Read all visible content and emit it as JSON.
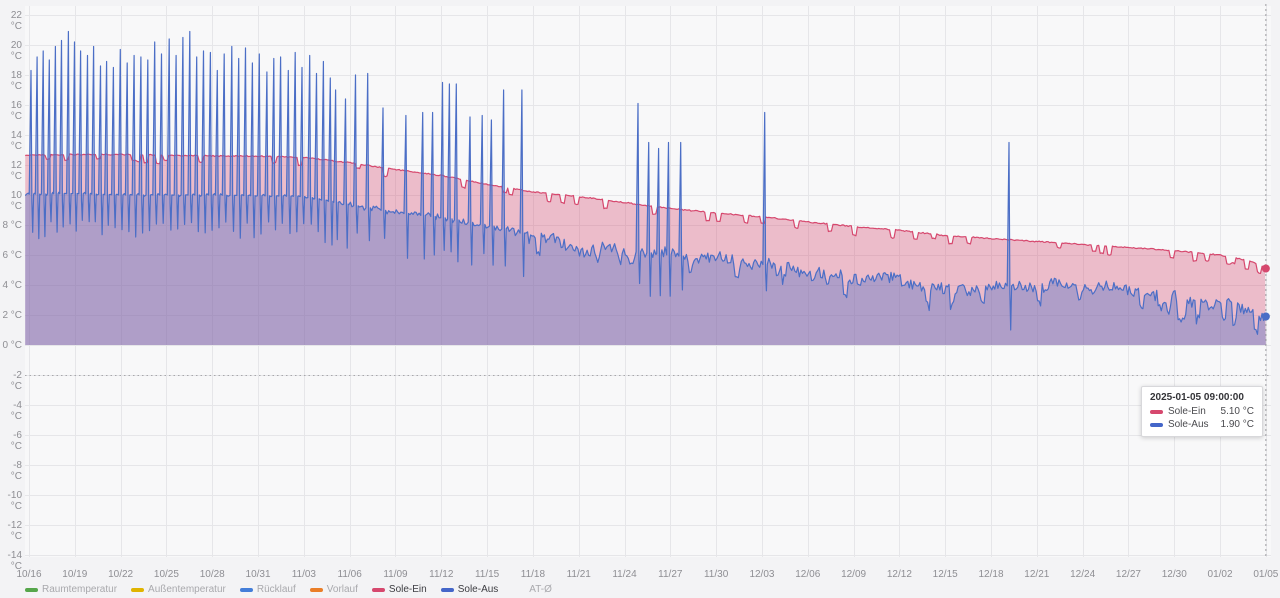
{
  "tooltip": {
    "title": "2025-01-05 09:00:00",
    "rows": [
      {
        "label": "Sole-Ein",
        "value": "5.10 °C",
        "color": "#d6486e"
      },
      {
        "label": "Sole-Aus",
        "value": "1.90 °C",
        "color": "#4466c9"
      }
    ]
  },
  "legend": {
    "items": [
      {
        "label": "Raumtemperatur",
        "color": "#56a64b",
        "active": false
      },
      {
        "label": "Außentemperatur",
        "color": "#e0b400",
        "active": false
      },
      {
        "label": "Rücklauf",
        "color": "#447ed9",
        "active": false
      },
      {
        "label": "Vorlauf",
        "color": "#ea7e28",
        "active": false
      },
      {
        "label": "Sole-Ein",
        "color": "#d6486e",
        "active": true
      },
      {
        "label": "Sole-Aus",
        "color": "#4466c9",
        "active": true
      },
      {
        "label": "AT-Ø",
        "color": null,
        "active": false
      }
    ]
  },
  "chart_data": {
    "type": "line",
    "title": "",
    "x_axis": {
      "tick_labels": [
        "10/16",
        "10/19",
        "10/22",
        "10/25",
        "10/28",
        "10/31",
        "11/03",
        "11/06",
        "11/09",
        "11/12",
        "11/15",
        "11/18",
        "11/21",
        "11/24",
        "11/27",
        "11/30",
        "12/03",
        "12/06",
        "12/09",
        "12/12",
        "12/15",
        "12/18",
        "12/21",
        "12/24",
        "12/27",
        "12/30",
        "01/02",
        "01/05"
      ],
      "days_per_tick": 3,
      "start_date": "10/16",
      "end_date": "01/05"
    },
    "y_axis": {
      "tick_labels": [
        "22 °C",
        "20 °C",
        "18 °C",
        "16 °C",
        "14 °C",
        "12 °C",
        "10 °C",
        "8 °C",
        "6 °C",
        "4 °C",
        "2 °C",
        "0 °C",
        "-2 °C",
        "-4 °C",
        "-6 °C",
        "-8 °C",
        "-10 °C",
        "-12 °C",
        "-14 °C"
      ],
      "max": 22,
      "min": -14,
      "step": 2,
      "unit": "°C",
      "grid": true
    },
    "threshold": {
      "value": -2,
      "style": "dotted",
      "color": "#a8a8ac"
    },
    "crosshair": {
      "day": 81,
      "time_label": "2025-01-05 09:00:00"
    },
    "fill_to_value": 0,
    "series": [
      {
        "name": "Sole-Ein",
        "color": "#d6486e",
        "fill_opacity": 0.34,
        "end_value": 5.1,
        "end_label": "5.10 °C",
        "points": [
          [
            0,
            12.65
          ],
          [
            3,
            12.7
          ],
          [
            6,
            12.7
          ],
          [
            9,
            12.65
          ],
          [
            12,
            12.6
          ],
          [
            15,
            12.6
          ],
          [
            18,
            12.5
          ],
          [
            21,
            12.15
          ],
          [
            24,
            11.7
          ],
          [
            27,
            11.3
          ],
          [
            30,
            10.7
          ],
          [
            33,
            10.2
          ],
          [
            36,
            9.9
          ],
          [
            39,
            9.5
          ],
          [
            42,
            9.1
          ],
          [
            45,
            8.8
          ],
          [
            48,
            8.55
          ],
          [
            51,
            8.2
          ],
          [
            54,
            7.9
          ],
          [
            57,
            7.65
          ],
          [
            60,
            7.3
          ],
          [
            63,
            7.1
          ],
          [
            66,
            6.9
          ],
          [
            69,
            6.7
          ],
          [
            72,
            6.5
          ],
          [
            75,
            6.3
          ],
          [
            78,
            6.0
          ],
          [
            80,
            5.6
          ],
          [
            81,
            5.1
          ]
        ]
      },
      {
        "name": "Sole-Aus",
        "color": "#4b6ec6",
        "fill_opacity": 0.38,
        "end_value": 1.9,
        "end_label": "1.90 °C",
        "points": [
          [
            0,
            10.05
          ],
          [
            3,
            10.1
          ],
          [
            6,
            10.0
          ],
          [
            9,
            10.0
          ],
          [
            12,
            10.0
          ],
          [
            15,
            9.95
          ],
          [
            18,
            9.9
          ],
          [
            21,
            9.35
          ],
          [
            24,
            8.85
          ],
          [
            27,
            8.5
          ],
          [
            30,
            8.0
          ],
          [
            33,
            7.3
          ],
          [
            36,
            6.4
          ],
          [
            39,
            6.3
          ],
          [
            42,
            6.0
          ],
          [
            45,
            5.7
          ],
          [
            48,
            5.4
          ],
          [
            51,
            4.9
          ],
          [
            54,
            4.5
          ],
          [
            57,
            4.3
          ],
          [
            60,
            3.6
          ],
          [
            63,
            3.9
          ],
          [
            66,
            4.0
          ],
          [
            69,
            3.9
          ],
          [
            72,
            3.7
          ],
          [
            75,
            3.1
          ],
          [
            78,
            2.7
          ],
          [
            80,
            2.4
          ],
          [
            81,
            1.9
          ]
        ],
        "spikes": [
          [
            0.15,
            18.3
          ],
          [
            0.55,
            19.2
          ],
          [
            0.95,
            19.6
          ],
          [
            1.35,
            19.0
          ],
          [
            1.75,
            19.9
          ],
          [
            2.15,
            20.3
          ],
          [
            2.6,
            20.9
          ],
          [
            3.0,
            20.2
          ],
          [
            3.4,
            19.6
          ],
          [
            3.85,
            19.3
          ],
          [
            4.25,
            19.9
          ],
          [
            4.7,
            18.6
          ],
          [
            5.1,
            18.9
          ],
          [
            5.55,
            18.5
          ],
          [
            6.0,
            19.7
          ],
          [
            6.45,
            18.8
          ],
          [
            6.9,
            19.3
          ],
          [
            7.35,
            19.2
          ],
          [
            7.8,
            19.0
          ],
          [
            8.25,
            20.2
          ],
          [
            8.7,
            19.4
          ],
          [
            9.2,
            20.4
          ],
          [
            9.65,
            19.3
          ],
          [
            10.1,
            20.5
          ],
          [
            10.55,
            20.9
          ],
          [
            11.0,
            19.2
          ],
          [
            11.45,
            19.6
          ],
          [
            11.9,
            19.5
          ],
          [
            12.35,
            18.3
          ],
          [
            12.8,
            19.4
          ],
          [
            13.3,
            19.9
          ],
          [
            13.75,
            19.1
          ],
          [
            14.2,
            19.8
          ],
          [
            14.65,
            18.8
          ],
          [
            15.1,
            19.4
          ],
          [
            15.6,
            18.2
          ],
          [
            16.05,
            19.1
          ],
          [
            16.5,
            19.2
          ],
          [
            17.0,
            18.3
          ],
          [
            17.45,
            19.5
          ],
          [
            17.9,
            18.5
          ],
          [
            18.4,
            19.3
          ],
          [
            18.85,
            18.1
          ],
          [
            19.3,
            18.9
          ],
          [
            19.75,
            17.8
          ],
          [
            20.1,
            17.0
          ],
          [
            20.75,
            16.4
          ],
          [
            21.4,
            18.0
          ],
          [
            22.2,
            18.1
          ],
          [
            23.2,
            15.8
          ],
          [
            24.7,
            15.3
          ],
          [
            25.8,
            15.5
          ],
          [
            26.45,
            15.5
          ],
          [
            27.1,
            17.5
          ],
          [
            27.55,
            17.4
          ],
          [
            28.0,
            17.4
          ],
          [
            28.9,
            15.2
          ],
          [
            29.7,
            15.3
          ],
          [
            30.3,
            15.0
          ],
          [
            31.1,
            17.0
          ],
          [
            32.3,
            17.0
          ],
          [
            39.9,
            16.1
          ],
          [
            40.6,
            13.5
          ],
          [
            41.25,
            13.1
          ],
          [
            41.9,
            13.5
          ],
          [
            42.7,
            13.5
          ],
          [
            48.2,
            15.5
          ],
          [
            64.2,
            13.5
          ]
        ]
      }
    ]
  }
}
